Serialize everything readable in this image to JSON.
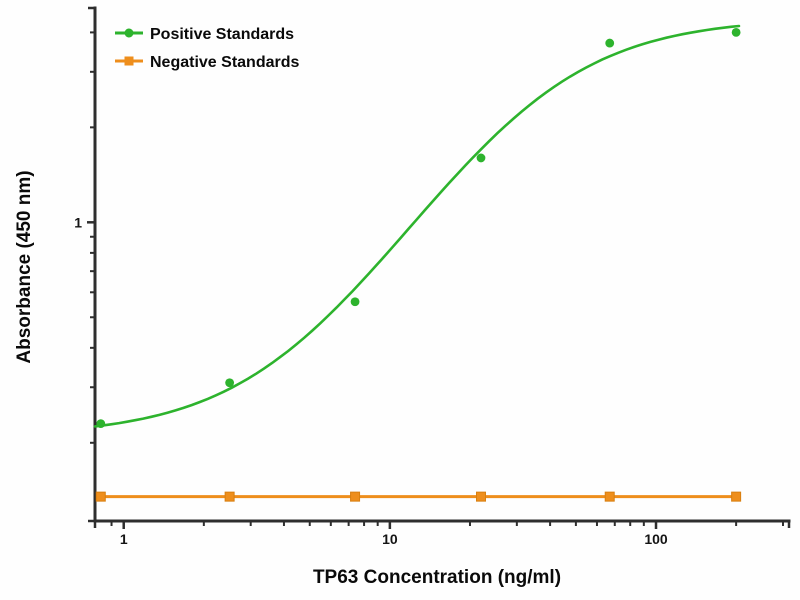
{
  "chart_data": {
    "type": "scatter",
    "title": "",
    "xlabel": "TP63 Concentration (ng/ml)",
    "ylabel": "Absorbance (450 nm)",
    "x_scale": "log",
    "y_scale": "log",
    "xlim": [
      0.78,
      316
    ],
    "ylim": [
      0.113,
      4.78
    ],
    "grid": false,
    "legend_position": "top-left",
    "axis_color": "#2e2e2e",
    "x_ticks": {
      "major": [
        1,
        10,
        100
      ],
      "labels": [
        "1",
        "10",
        "100"
      ],
      "minor": [
        0.9,
        2,
        3,
        4,
        5,
        6,
        7,
        8,
        9,
        20,
        30,
        40,
        50,
        60,
        70,
        80,
        90,
        200,
        300
      ]
    },
    "y_ticks": {
      "major": [
        1
      ],
      "labels": [
        "1"
      ],
      "minor": [
        0.2,
        0.3,
        0.4,
        0.5,
        0.6,
        0.7,
        0.8,
        0.9,
        2,
        3,
        4
      ]
    },
    "x": [
      0.82,
      2.5,
      7.4,
      22,
      67,
      200
    ],
    "series": [
      {
        "name": "Positive Standards",
        "color": "#2db32d",
        "marker": "circle",
        "values": [
          0.23,
          0.31,
          0.56,
          1.6,
          3.7,
          4.0
        ],
        "fit": {
          "type": "4pl",
          "bottom": 0.21,
          "top": 4.45,
          "ec50": 33,
          "hill": 1.5,
          "draw_from": 0.78,
          "draw_to": 205
        }
      },
      {
        "name": "Negative Standards",
        "color": "#ee8e1c",
        "marker": "square",
        "values": [
          0.135,
          0.135,
          0.135,
          0.135,
          0.135,
          0.135
        ],
        "fit": {
          "type": "flat",
          "level": 0.135,
          "draw_from": 0.82,
          "draw_to": 202
        }
      }
    ]
  }
}
